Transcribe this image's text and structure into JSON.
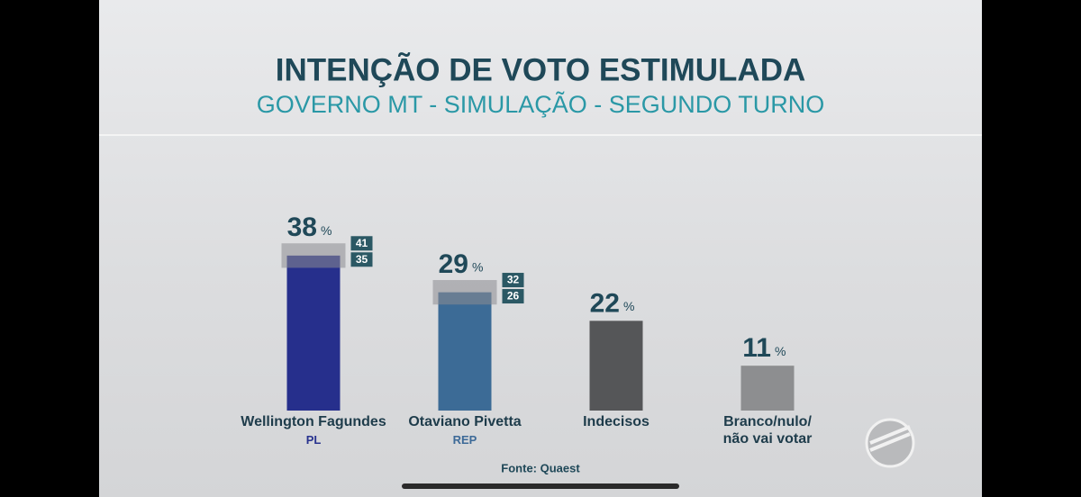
{
  "chart_data": {
    "type": "bar",
    "title": "INTENÇÃO DE VOTO ESTIMULADA",
    "subtitle": "GOVERNO MT - SIMULAÇÃO - SEGUNDO TURNO",
    "categories": [
      "Wellington Fagundes",
      "Otaviano Pivetta",
      "Indecisos",
      "Branco/nulo/ não vai votar"
    ],
    "parties": [
      "PL",
      "REP",
      null,
      null
    ],
    "party_colors": [
      "#28338f",
      "#3d6a98",
      null,
      null
    ],
    "values": [
      38,
      29,
      22,
      11
    ],
    "unit": "%",
    "margin_high": [
      41,
      32,
      null,
      null
    ],
    "margin_low": [
      35,
      26,
      null,
      null
    ],
    "colors": [
      "#262f8c",
      "#3c6b96",
      "#555658",
      "#8d8e90"
    ],
    "source": "Fonte: Quaest"
  }
}
